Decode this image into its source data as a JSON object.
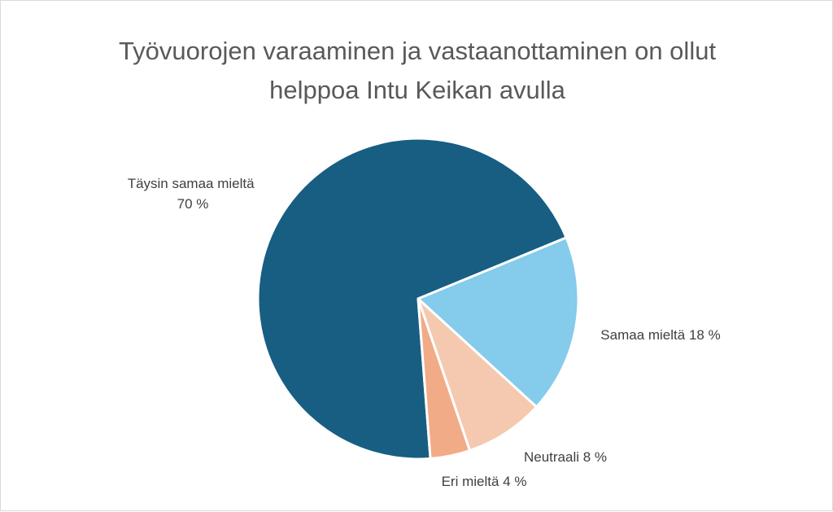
{
  "chart_data": {
    "type": "pie",
    "title_lines": [
      "Työvuorojen varaaminen ja vastaanottaminen on ollut",
      "helppoa Intu Keikan avulla"
    ],
    "unit": "%",
    "slices": [
      {
        "label": "Täysin samaa mieltä",
        "value": 70,
        "value_label": "70 %",
        "color": "#175e82"
      },
      {
        "label": "Samaa mieltä",
        "value": 18,
        "value_label": "18 %",
        "color": "#84cbec"
      },
      {
        "label": "Neutraali",
        "value": 8,
        "value_label": "8 %",
        "color": "#f5c9b0"
      },
      {
        "label": "Eri mieltä",
        "value": 4,
        "value_label": "4 %",
        "color": "#f2ab87"
      }
    ],
    "legend": "none",
    "data_labels": "outside"
  }
}
